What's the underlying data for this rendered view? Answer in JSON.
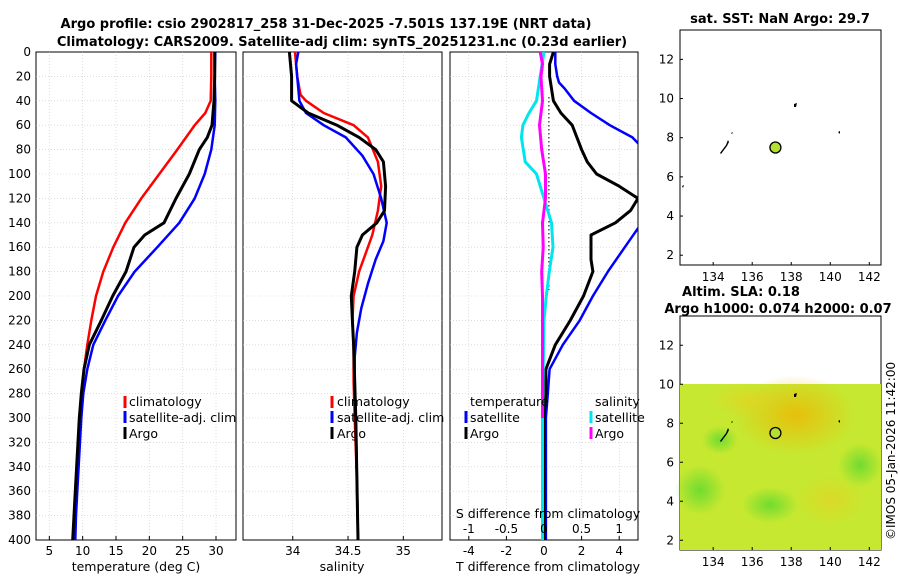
{
  "header": {
    "title_line1": "Argo profile: csio 2902817_258 31-Dec-2025 -7.501S 137.19E (NRT data)",
    "title_line2": "Climatology: CARS2009. Satellite-adj clim: synTS_20251231.nc (0.23d earlier)"
  },
  "colors": {
    "climatology": "#ff0000",
    "satellite": "#0000ff",
    "argo": "#000000",
    "s_satellite": "#00e5ee",
    "s_argo": "#ff00ff"
  },
  "chart_data": [
    {
      "type": "line",
      "id": "temperature",
      "xlabel": "temperature (deg C)",
      "xlim": [
        3,
        33
      ],
      "ylim": [
        0,
        400
      ],
      "x_ticks": [
        5,
        10,
        15,
        20,
        25,
        30
      ],
      "y_ticks": [
        0,
        20,
        40,
        60,
        80,
        100,
        120,
        140,
        160,
        180,
        200,
        220,
        240,
        260,
        280,
        300,
        320,
        340,
        360,
        380,
        400
      ],
      "legend": {
        "position": "lower-right",
        "entries": [
          "climatology",
          "satellite-adj. clim",
          "Argo"
        ]
      },
      "series": [
        {
          "name": "climatology",
          "color": "#ff0000",
          "width": 2.5,
          "points": [
            [
              29.3,
              0
            ],
            [
              29.3,
              20
            ],
            [
              29.2,
              40
            ],
            [
              28.4,
              50
            ],
            [
              26.8,
              60
            ],
            [
              24.2,
              80
            ],
            [
              21.5,
              100
            ],
            [
              18.8,
              120
            ],
            [
              16.4,
              140
            ],
            [
              14.6,
              160
            ],
            [
              13.1,
              180
            ],
            [
              12.0,
              200
            ],
            [
              11.3,
              220
            ],
            [
              10.7,
              240
            ],
            [
              10.2,
              260
            ],
            [
              9.9,
              280
            ],
            [
              9.6,
              300
            ],
            [
              9.3,
              330
            ],
            [
              9.0,
              360
            ],
            [
              8.8,
              380
            ],
            [
              8.6,
              400
            ]
          ]
        },
        {
          "name": "satellite-adj. clim",
          "color": "#0000ff",
          "width": 2.5,
          "points": [
            [
              29.9,
              0
            ],
            [
              29.8,
              20
            ],
            [
              29.9,
              40
            ],
            [
              29.8,
              60
            ],
            [
              29.3,
              80
            ],
            [
              28.3,
              100
            ],
            [
              26.8,
              120
            ],
            [
              24.5,
              140
            ],
            [
              21.2,
              160
            ],
            [
              17.8,
              180
            ],
            [
              15.3,
              200
            ],
            [
              13.4,
              220
            ],
            [
              11.6,
              240
            ],
            [
              10.7,
              260
            ],
            [
              10.1,
              280
            ],
            [
              9.8,
              300
            ],
            [
              9.5,
              330
            ],
            [
              9.2,
              360
            ],
            [
              9.0,
              380
            ],
            [
              8.9,
              400
            ]
          ]
        },
        {
          "name": "Argo",
          "color": "#000000",
          "width": 3,
          "points": [
            [
              29.8,
              0
            ],
            [
              29.8,
              20
            ],
            [
              29.7,
              40
            ],
            [
              29.4,
              60
            ],
            [
              28.7,
              70
            ],
            [
              27.5,
              80
            ],
            [
              26.0,
              100
            ],
            [
              24.0,
              120
            ],
            [
              22.2,
              140
            ],
            [
              19.3,
              150
            ],
            [
              17.7,
              160
            ],
            [
              16.5,
              180
            ],
            [
              14.5,
              200
            ],
            [
              12.8,
              220
            ],
            [
              11.0,
              240
            ],
            [
              10.2,
              260
            ],
            [
              9.8,
              280
            ],
            [
              9.5,
              300
            ],
            [
              9.2,
              330
            ],
            [
              8.9,
              360
            ],
            [
              8.7,
              380
            ],
            [
              8.5,
              400
            ]
          ]
        }
      ]
    },
    {
      "type": "line",
      "id": "salinity",
      "xlabel": "salinity",
      "xlim": [
        33.55,
        35.35
      ],
      "ylim": [
        0,
        400
      ],
      "x_ticks": [
        34,
        34.5,
        35
      ],
      "legend": {
        "position": "lower-right",
        "entries": [
          "climatology",
          "satellite-adj. clim",
          "Argo"
        ]
      },
      "series": [
        {
          "name": "climatology",
          "color": "#ff0000",
          "width": 2.5,
          "points": [
            [
              34.02,
              0
            ],
            [
              34.04,
              20
            ],
            [
              34.07,
              35
            ],
            [
              34.12,
              40
            ],
            [
              34.28,
              50
            ],
            [
              34.55,
              60
            ],
            [
              34.68,
              70
            ],
            [
              34.77,
              90
            ],
            [
              34.8,
              110
            ],
            [
              34.77,
              130
            ],
            [
              34.72,
              150
            ],
            [
              34.66,
              165
            ],
            [
              34.6,
              180
            ],
            [
              34.55,
              200
            ],
            [
              34.54,
              220
            ],
            [
              34.55,
              240
            ],
            [
              34.55,
              270
            ],
            [
              34.56,
              300
            ],
            [
              34.58,
              350
            ],
            [
              34.59,
              400
            ]
          ]
        },
        {
          "name": "satellite-adj. clim",
          "color": "#0000ff",
          "width": 2.5,
          "points": [
            [
              34.05,
              0
            ],
            [
              34.03,
              10
            ],
            [
              34.04,
              20
            ],
            [
              34.06,
              40
            ],
            [
              34.12,
              50
            ],
            [
              34.28,
              60
            ],
            [
              34.48,
              70
            ],
            [
              34.63,
              85
            ],
            [
              34.73,
              100
            ],
            [
              34.8,
              120
            ],
            [
              34.85,
              140
            ],
            [
              34.82,
              155
            ],
            [
              34.75,
              170
            ],
            [
              34.68,
              190
            ],
            [
              34.62,
              210
            ],
            [
              34.58,
              230
            ],
            [
              34.56,
              250
            ],
            [
              34.56,
              280
            ],
            [
              34.57,
              300
            ],
            [
              34.58,
              350
            ],
            [
              34.59,
              400
            ]
          ]
        },
        {
          "name": "Argo",
          "color": "#000000",
          "width": 3,
          "points": [
            [
              33.97,
              0
            ],
            [
              33.98,
              10
            ],
            [
              33.99,
              20
            ],
            [
              33.99,
              40
            ],
            [
              34.14,
              50
            ],
            [
              34.4,
              60
            ],
            [
              34.6,
              70
            ],
            [
              34.75,
              80
            ],
            [
              34.82,
              90
            ],
            [
              34.84,
              110
            ],
            [
              34.83,
              130
            ],
            [
              34.76,
              140
            ],
            [
              34.63,
              150
            ],
            [
              34.58,
              160
            ],
            [
              34.56,
              180
            ],
            [
              34.53,
              200
            ],
            [
              34.54,
              220
            ],
            [
              34.55,
              240
            ],
            [
              34.56,
              270
            ],
            [
              34.57,
              300
            ],
            [
              34.58,
              350
            ],
            [
              34.59,
              400
            ]
          ]
        }
      ]
    },
    {
      "type": "line",
      "id": "difference",
      "xlabel": "T difference from climatology",
      "x2label": "S difference from climatology",
      "xlim": [
        -5,
        5
      ],
      "x2lim": [
        -1.25,
        1.25
      ],
      "ylim": [
        0,
        400
      ],
      "x_ticks": [
        -4,
        -2,
        0,
        2,
        4
      ],
      "x2_ticks": [
        -1,
        -0.5,
        0,
        0.5,
        1
      ],
      "legend": {
        "position": "lower-center",
        "temperature_header": "temperature",
        "salinity_header": "salinity",
        "entries": [
          "satellite",
          "Argo",
          "satellite",
          "Argo"
        ]
      },
      "series": [
        {
          "name": "T satellite",
          "axis": "x",
          "color": "#0000ff",
          "width": 2.5,
          "points": [
            [
              0.6,
              0
            ],
            [
              0.6,
              10
            ],
            [
              0.7,
              20
            ],
            [
              0.8,
              25
            ],
            [
              1.1,
              30
            ],
            [
              1.6,
              40
            ],
            [
              2.5,
              50
            ],
            [
              3.5,
              60
            ],
            [
              4.7,
              70
            ],
            [
              5.2,
              78
            ]
          ],
          "points2": [
            [
              5.2,
              140
            ],
            [
              4.3,
              160
            ],
            [
              3.4,
              180
            ],
            [
              2.6,
              200
            ],
            [
              1.9,
              220
            ],
            [
              1.0,
              240
            ],
            [
              0.3,
              260
            ],
            [
              0.2,
              280
            ],
            [
              0.1,
              300
            ],
            [
              0.1,
              350
            ],
            [
              0.1,
              400
            ]
          ]
        },
        {
          "name": "T Argo",
          "axis": "x",
          "color": "#000000",
          "width": 3,
          "points": [
            [
              0.5,
              0
            ],
            [
              0.3,
              10
            ],
            [
              0.3,
              20
            ],
            [
              0.5,
              40
            ],
            [
              0.9,
              50
            ],
            [
              1.5,
              60
            ],
            [
              2.0,
              80
            ],
            [
              2.3,
              90
            ],
            [
              2.8,
              100
            ],
            [
              4.0,
              110
            ],
            [
              5.0,
              120
            ],
            [
              4.6,
              130
            ],
            [
              3.8,
              140
            ],
            [
              2.5,
              150
            ],
            [
              2.5,
              170
            ],
            [
              2.6,
              180
            ],
            [
              2.1,
              200
            ],
            [
              1.4,
              220
            ],
            [
              0.6,
              240
            ],
            [
              0.1,
              260
            ],
            [
              0.1,
              280
            ],
            [
              0.0,
              300
            ],
            [
              0.0,
              350
            ],
            [
              0.0,
              400
            ]
          ]
        },
        {
          "name": "S satellite",
          "axis": "x2",
          "color": "#00e5ee",
          "width": 3,
          "points": [
            [
              0.0,
              0
            ],
            [
              -0.05,
              20
            ],
            [
              -0.1,
              40
            ],
            [
              -0.2,
              50
            ],
            [
              -0.28,
              60
            ],
            [
              -0.3,
              70
            ],
            [
              -0.25,
              90
            ],
            [
              -0.1,
              100
            ],
            [
              0.0,
              120
            ],
            [
              0.1,
              140
            ],
            [
              0.12,
              160
            ],
            [
              0.07,
              180
            ],
            [
              0.03,
              200
            ],
            [
              0.0,
              220
            ],
            [
              -0.01,
              260
            ],
            [
              -0.02,
              300
            ],
            [
              -0.02,
              350
            ],
            [
              -0.02,
              400
            ]
          ]
        },
        {
          "name": "S Argo",
          "axis": "x2",
          "color": "#ff00ff",
          "width": 3,
          "points": [
            [
              -0.05,
              0
            ],
            [
              -0.02,
              10
            ],
            [
              -0.04,
              20
            ],
            [
              -0.03,
              30
            ],
            [
              -0.02,
              40
            ],
            [
              -0.04,
              50
            ],
            [
              -0.06,
              60
            ],
            [
              -0.03,
              80
            ],
            [
              0.02,
              100
            ],
            [
              0.02,
              120
            ],
            [
              -0.02,
              140
            ],
            [
              -0.01,
              160
            ],
            [
              -0.03,
              180
            ],
            [
              -0.02,
              200
            ],
            [
              -0.02,
              220
            ],
            [
              -0.02,
              260
            ],
            [
              -0.02,
              300
            ]
          ]
        }
      ]
    },
    {
      "type": "scatter",
      "id": "sst-map",
      "title": "sat. SST: NaN Argo: 29.7",
      "xlim": [
        132.3,
        142.6
      ],
      "ylim": [
        1.5,
        13.5
      ],
      "x_ticks": [
        134,
        136,
        138,
        140,
        142
      ],
      "y_ticks": [
        2,
        4,
        6,
        8,
        10,
        12
      ],
      "float_position": [
        137.19,
        7.5
      ],
      "float_color": "#b4e033"
    },
    {
      "type": "heatmap",
      "id": "sla-map",
      "title_line1": "Altim. SLA: 0.18",
      "title_line2": "Argo h1000: 0.074 h2000: 0.07",
      "xlim": [
        132.3,
        142.6
      ],
      "ylim": [
        1.5,
        13.5
      ],
      "field_ylim": [
        1.5,
        10
      ],
      "x_ticks": [
        134,
        136,
        138,
        140,
        142
      ],
      "y_ticks": [
        2,
        4,
        6,
        8,
        10,
        12
      ],
      "float_position": [
        137.19,
        7.5
      ],
      "float_color": "#b4e033"
    }
  ],
  "footer": {
    "credit": "©IMOS 05-Jan-2026 11:42:00"
  }
}
